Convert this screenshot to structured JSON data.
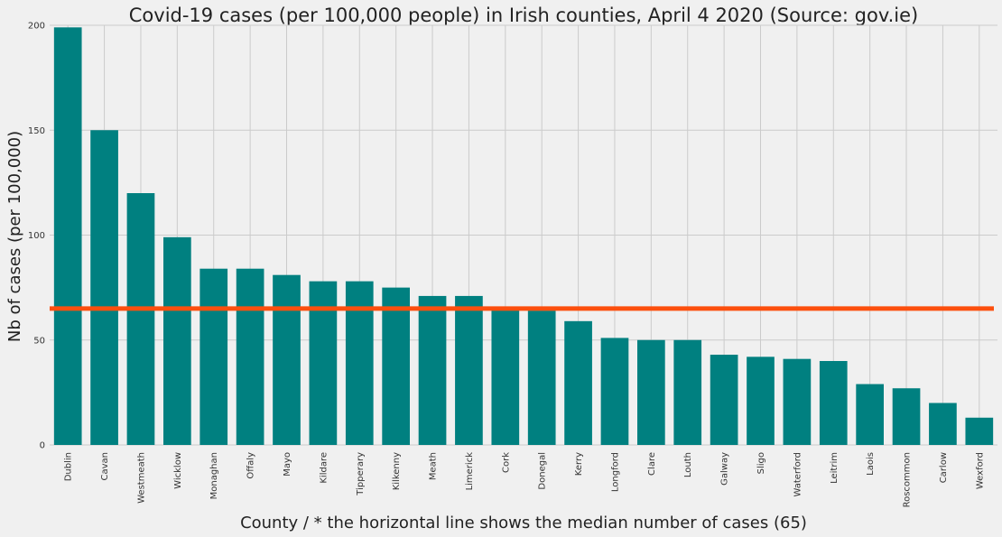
{
  "chart_data": {
    "type": "bar",
    "title": "Covid-19 cases (per 100,000 people) in Irish counties, April 4 2020 (Source: gov.ie)",
    "xlabel": "County / * the horizontal line shows the median number of cases (65)",
    "ylabel": "Nb of cases (per 100,000)",
    "categories": [
      "Dublin",
      "Cavan",
      "Westmeath",
      "Wicklow",
      "Monaghan",
      "Offaly",
      "Mayo",
      "Kildare",
      "Tipperary",
      "Kilkenny",
      "Meath",
      "Limerick",
      "Cork",
      "Donegal",
      "Kerry",
      "Longford",
      "Clare",
      "Louth",
      "Galway",
      "Sligo",
      "Waterford",
      "Leitrim",
      "Laois",
      "Roscommon",
      "Carlow",
      "Wexford"
    ],
    "values": [
      199,
      150,
      120,
      99,
      84,
      84,
      81,
      78,
      78,
      75,
      71,
      71,
      65,
      64,
      59,
      51,
      50,
      50,
      43,
      42,
      41,
      40,
      29,
      27,
      20,
      13
    ],
    "ylim": [
      0,
      200
    ],
    "yticks": [
      0,
      50,
      100,
      150,
      200
    ],
    "median_line": 65,
    "grid": true,
    "colors": {
      "bar": "#008080",
      "median": "#fc4f0e",
      "grid": "#cbcbcb",
      "background": "#f0f0f0"
    }
  }
}
